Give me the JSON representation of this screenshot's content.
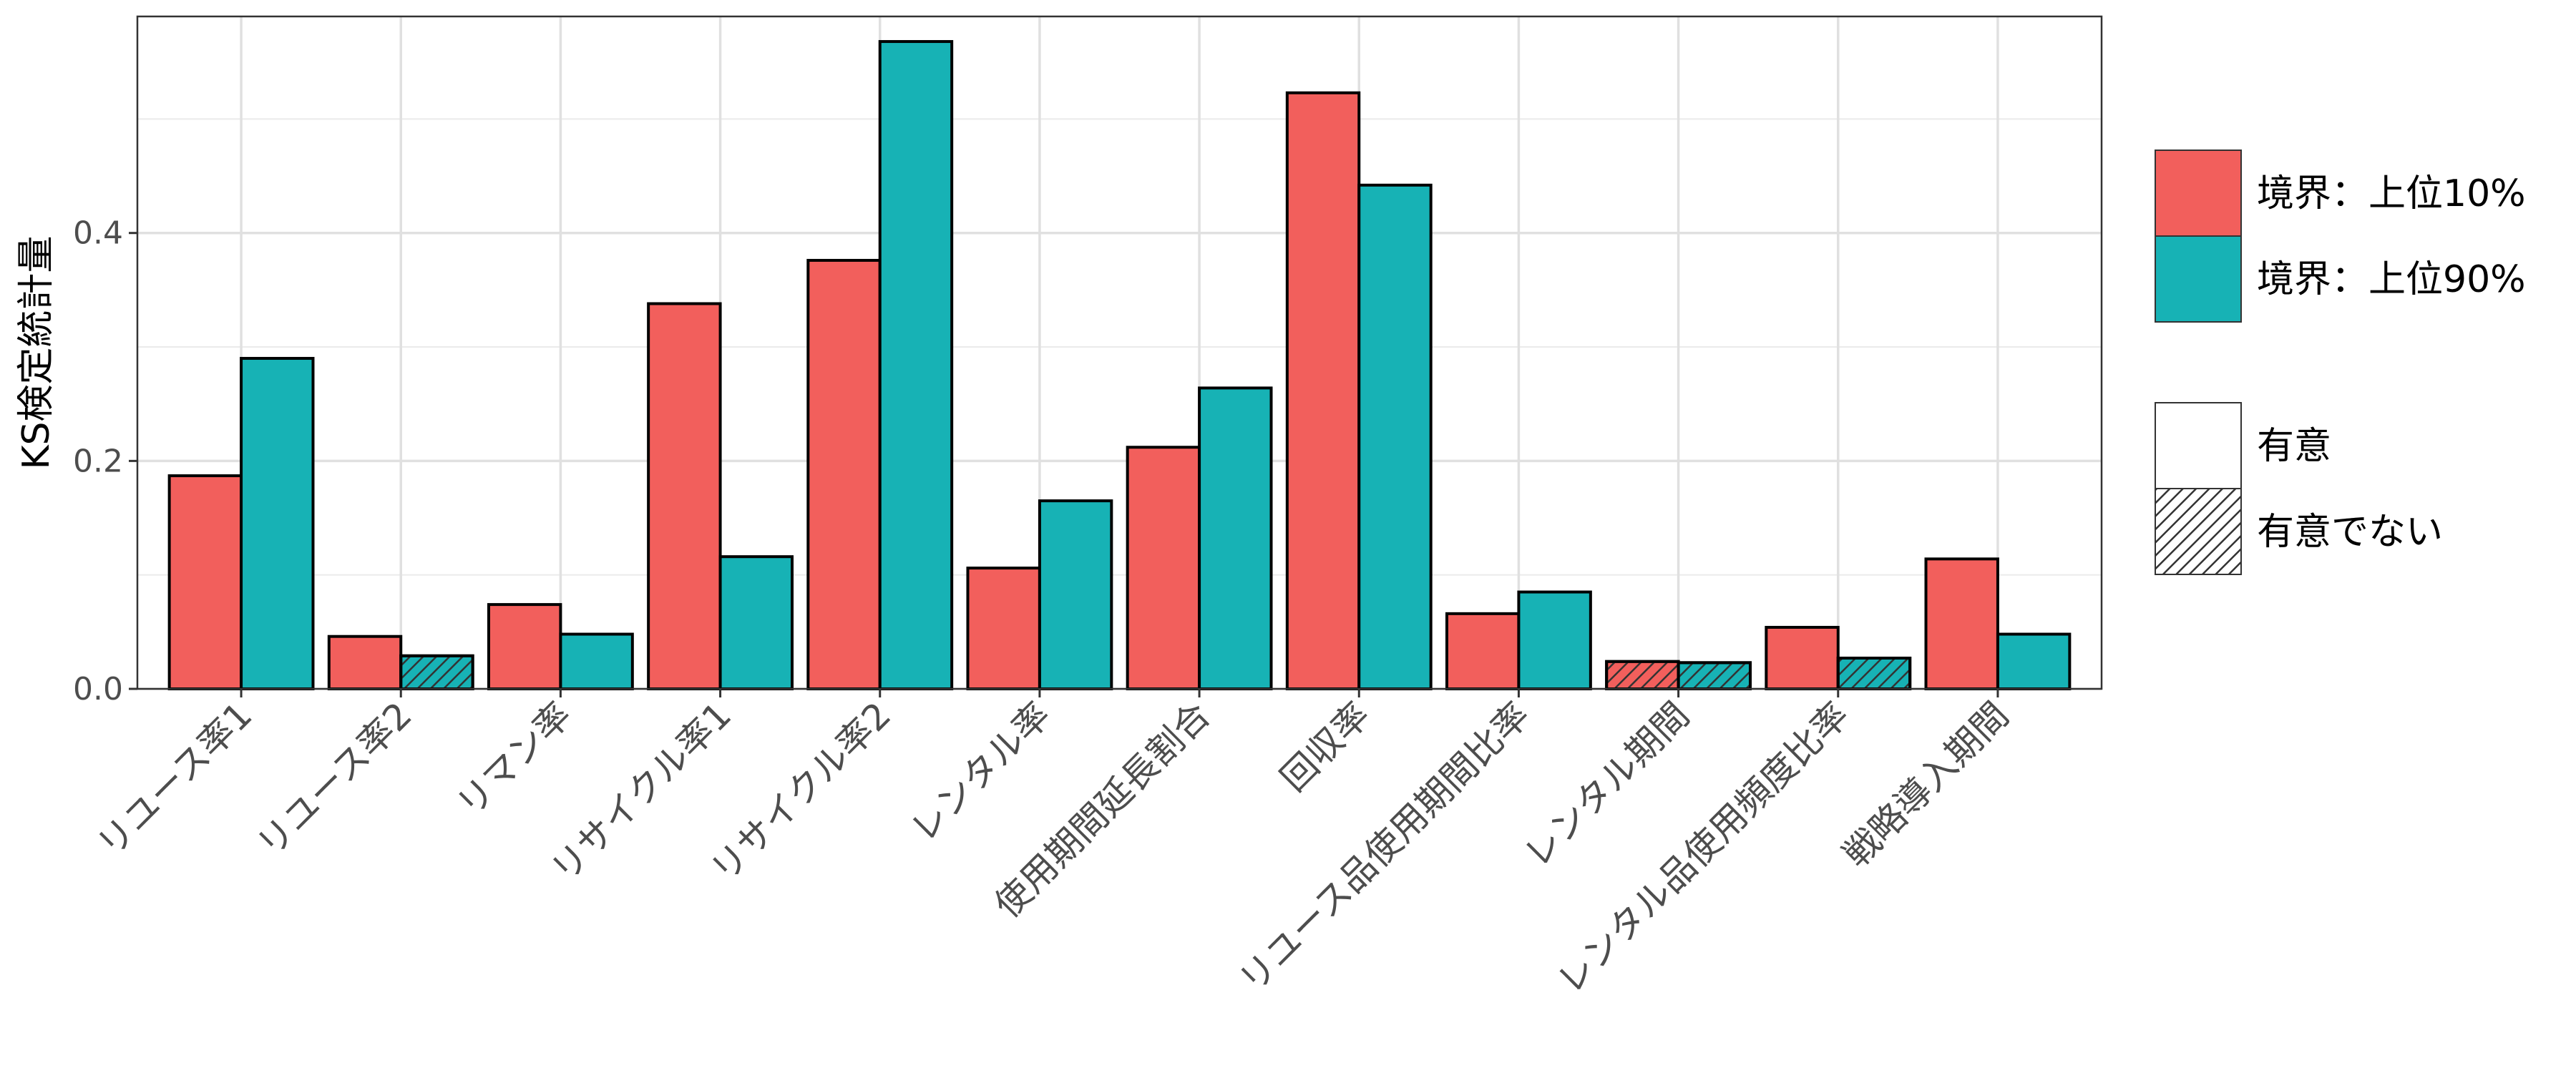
{
  "chart_data": {
    "type": "bar",
    "title": "",
    "xlabel": "",
    "ylabel": "KS検定統計量",
    "ylim": [
      0,
      0.59
    ],
    "yticks": [
      "0.0",
      "0.2",
      "0.4"
    ],
    "ytick_values": [
      0.0,
      0.2,
      0.4
    ],
    "grid": true,
    "legend_position": "right",
    "categories": [
      "リユース率1",
      "リユース率2",
      "リマン率",
      "リサイクル率1",
      "リサイクル率2",
      "レンタル率",
      "使用期間延長割合",
      "回収率",
      "リユース品使用期間比率",
      "レンタル期間",
      "レンタル品使用頻度比率",
      "戦略導入期間"
    ],
    "series": [
      {
        "name": "境界：上位10%",
        "color": "#F25F5C",
        "values": [
          0.187,
          0.046,
          0.074,
          0.338,
          0.376,
          0.106,
          0.212,
          0.523,
          0.066,
          0.024,
          0.054,
          0.114
        ],
        "significant": [
          true,
          true,
          true,
          true,
          true,
          true,
          true,
          true,
          true,
          false,
          true,
          true
        ]
      },
      {
        "name": "境界：上位90%",
        "color": "#17B2B5",
        "values": [
          0.29,
          0.029,
          0.048,
          0.116,
          0.568,
          0.165,
          0.264,
          0.442,
          0.085,
          0.023,
          0.027,
          0.048
        ],
        "significant": [
          true,
          false,
          true,
          true,
          true,
          true,
          true,
          true,
          true,
          false,
          false,
          true
        ]
      }
    ],
    "legend_fill": [
      "境界：上位10%",
      "境界：上位90%"
    ],
    "legend_pattern": [
      "有意",
      "有意でない"
    ]
  }
}
